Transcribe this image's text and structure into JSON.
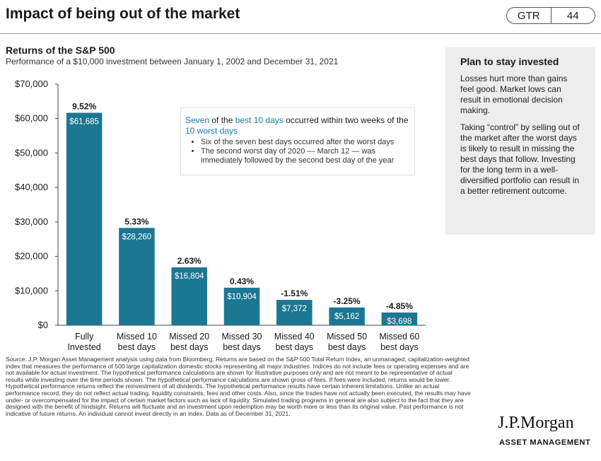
{
  "header": {
    "title": "Impact of being out of the market",
    "badge_left": "GTR",
    "badge_right": "44"
  },
  "chart_header": {
    "subtitle": "Returns of the S&P 500",
    "description": "Performance of a $10,000 investment between January 1, 2002 and December 31, 2021"
  },
  "callout": {
    "part1": "Seven",
    "part2": " of the ",
    "part3": "best 10 days",
    "part4": " occurred within two weeks of the ",
    "part5": "10 worst days",
    "bullets": [
      "Six of the seven best days occurred after the worst days",
      "The second worst day of 2020 — March 12 — was immediately followed by the second best day of the year"
    ]
  },
  "sidebar": {
    "heading": "Plan to stay invested",
    "para1": "Losses hurt more than gains feel good. Market lows can result in emotional decision making.",
    "para2": "Taking “control” by selling out of the market after the worst days is likely to result in missing the best days that follow. Investing for the long term in a well-diversified portfolio can result in a better retirement outcome."
  },
  "source": "Source: J.P. Morgan Asset Management analysis using data from Bloomberg. Returns are based on the S&P 500 Total Return Index, an unmanaged, capitalization-weighted index that measures the performance of 500 large capitalization domestic stocks representing all major industries. Indices do not include fees or operating expenses and are not available for actual investment. The hypothetical performance calculations are shown for illustrative purposes only and are not meant to be representative of actual results while investing over the time periods shown. The hypothetical performance calculations are shown gross of fees. If fees were included, returns would be lower. Hypothetical performance returns reflect the reinvestment of all dividends. The hypothetical performance results have certain inherent limitations. Unlike an actual performance record, they do not reflect actual trading, liquidity constraints, fees and other costs. Also, since the trades have not actually been executed, the results may have under- or overcompensated for the impact of certain market factors such as lack of liquidity. Simulated trading programs in general are also subject to the fact that they are designed with the benefit of hindsight. Returns will fluctuate and an investment upon redemption may be worth more or less than its original value. Past performance is not indicative of future returns. An individual cannot invest directly in an index. Data as of December 31, 2021.",
  "logo": {
    "name": "J.P.Morgan",
    "sub": "ASSET MANAGEMENT"
  },
  "colors": {
    "bar": "#1c7793",
    "text": "#1a1a1a",
    "axis": "#444444",
    "callout_highlight": "#1b7aa3",
    "sidebar_bg": "#ededed"
  },
  "chart_data": {
    "type": "bar",
    "categories": [
      [
        "Fully",
        "Invested"
      ],
      [
        "Missed 10",
        "best days"
      ],
      [
        "Missed 20",
        "best days"
      ],
      [
        "Missed 30",
        "best days"
      ],
      [
        "Missed 40",
        "best days"
      ],
      [
        "Missed 50",
        "best days"
      ],
      [
        "Missed 60",
        "best days"
      ]
    ],
    "values": [
      61685,
      28260,
      16804,
      10904,
      7372,
      5162,
      3698
    ],
    "value_labels": [
      "$61,685",
      "$28,260",
      "$16,804",
      "$10,904",
      "$7,372",
      "$5,162",
      "$3,698"
    ],
    "returns": [
      "9.52%",
      "5.33%",
      "2.63%",
      "0.43%",
      "-1.51%",
      "-3.25%",
      "-4.85%"
    ],
    "yticks": [
      0,
      10000,
      20000,
      30000,
      40000,
      50000,
      60000,
      70000
    ],
    "ytick_labels": [
      "$0",
      "$10,000",
      "$20,000",
      "$30,000",
      "$40,000",
      "$50,000",
      "$60,000",
      "$70,000"
    ],
    "ylim": [
      0,
      70000
    ],
    "grid": false
  }
}
